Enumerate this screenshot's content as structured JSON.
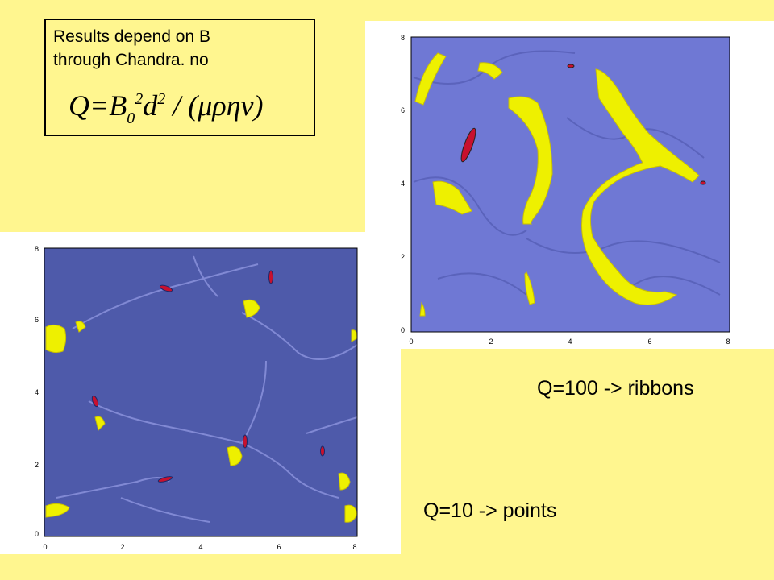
{
  "note": {
    "line1": "Results depend on B",
    "line2": "through Chandra. no"
  },
  "formula": {
    "lhs": "Q=B",
    "sub0": "0",
    "sup2a": "2",
    "d": "d",
    "sup2b": "2",
    "rest": " / (μρην)"
  },
  "captions": {
    "ribbons": "Q=100 -> ribbons",
    "points": "Q=10 -> points"
  },
  "plots": {
    "ticks": [
      "0",
      "2",
      "4",
      "6",
      "8"
    ],
    "colors": {
      "background": "#6F78D4",
      "cell_dark": "#5560B8",
      "field": "#EEF000",
      "peak": "#C8102E",
      "left_background": "#4E5AAA"
    }
  }
}
